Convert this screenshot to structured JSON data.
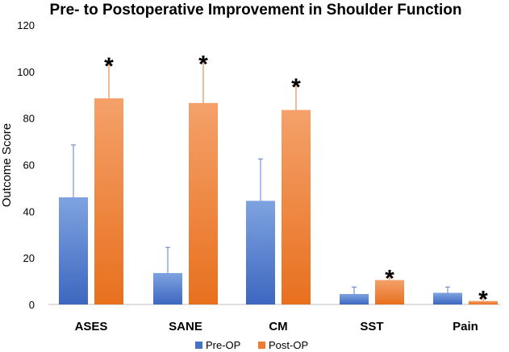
{
  "chart_data": {
    "type": "bar",
    "title": "Pre- to Postoperative Improvement in Shoulder Function",
    "xlabel": "",
    "ylabel": "Outcome Score",
    "ylim": [
      0,
      120
    ],
    "yticks": [
      "0",
      "20",
      "40",
      "60",
      "80",
      "100",
      "120"
    ],
    "categories": [
      "ASES",
      "SANE",
      "CM",
      "SST",
      "Pain"
    ],
    "series": [
      {
        "name": "Pre-OP",
        "color": "#4472c4",
        "values": [
          46,
          13.5,
          44.5,
          4.5,
          5
        ],
        "error_upper": [
          68.5,
          24.5,
          62.5,
          7.5,
          7.5
        ]
      },
      {
        "name": "Post-OP",
        "color": "#ed7d31",
        "values": [
          88.5,
          86.5,
          83.5,
          10.5,
          1.5
        ],
        "error_upper": [
          103,
          104,
          94,
          12,
          3
        ]
      }
    ],
    "significance_marker": "*",
    "significant": [
      true,
      true,
      true,
      true,
      true
    ],
    "legend_position": "bottom",
    "grid": false
  }
}
